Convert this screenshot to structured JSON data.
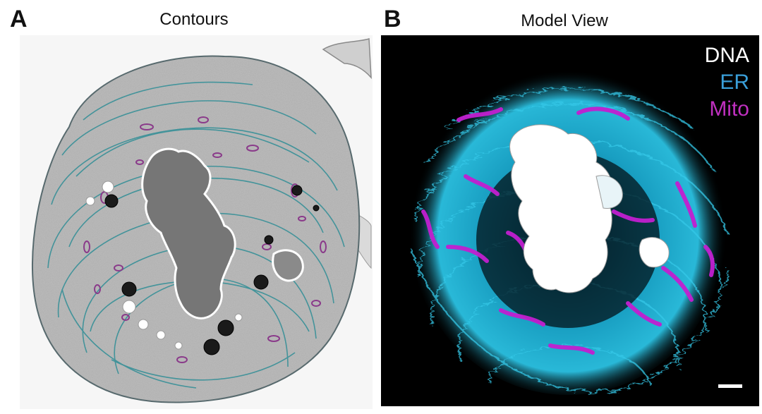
{
  "panel_a": {
    "letter": "A",
    "title": "Contours"
  },
  "panel_b": {
    "letter": "B",
    "title": "Model View",
    "legend": [
      {
        "label": "DNA",
        "color": "#ffffff"
      },
      {
        "label": "ER",
        "color": "#3a9fd9"
      },
      {
        "label": "Mito",
        "color": "#c030c0"
      }
    ]
  },
  "colors": {
    "cytoplasm": "#b9b9b9",
    "er": "#2f8e96",
    "mito": "#8a3a8a",
    "nucleus": "#7a7a7a",
    "model_bg": "#000000",
    "model_er": "#2bb5d8",
    "model_mito": "#c21fd0"
  }
}
